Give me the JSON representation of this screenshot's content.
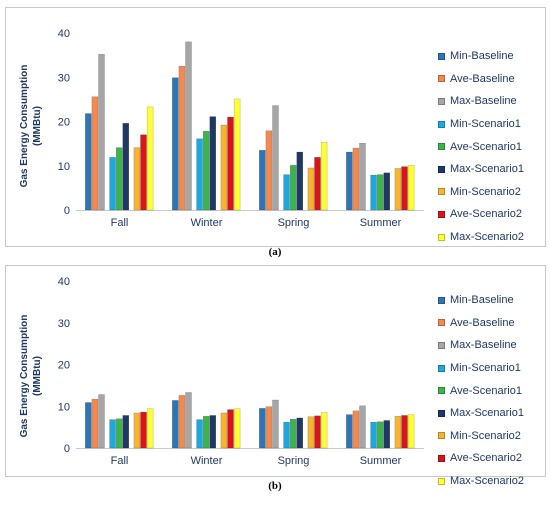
{
  "chart_data": [
    {
      "type": "bar",
      "panel": "a",
      "caption": "(a)",
      "ylabel_lines": [
        "Gas Energy Consumption",
        "(MMBtu)"
      ],
      "ylim": [
        0,
        40
      ],
      "yticks": [
        0,
        10,
        20,
        30,
        40
      ],
      "grid": false,
      "legend_position": "right",
      "categories": [
        "Fall",
        "Winter",
        "Spring",
        "Summer"
      ],
      "series": [
        {
          "name": "Min-Baseline",
          "color": "#2e75b6",
          "values": [
            21.8,
            29.9,
            13.5,
            13.1
          ]
        },
        {
          "name": "Ave-Baseline",
          "color": "#f4894f",
          "values": [
            25.6,
            32.5,
            17.9,
            14.0
          ]
        },
        {
          "name": "Max-Baseline",
          "color": "#a6a6a6",
          "values": [
            35.2,
            38.0,
            23.6,
            15.1
          ]
        },
        {
          "name": "Min-Scenario1",
          "color": "#1fa7e0",
          "values": [
            11.9,
            16.1,
            8.0,
            7.9
          ]
        },
        {
          "name": "Ave-Scenario1",
          "color": "#3cb44b",
          "values": [
            14.1,
            17.8,
            10.1,
            8.0
          ]
        },
        {
          "name": "Max-Scenario1",
          "color": "#1f3864",
          "values": [
            19.6,
            21.1,
            13.1,
            8.4
          ]
        },
        {
          "name": "Min-Scenario2",
          "color": "#f5b52e",
          "values": [
            14.1,
            19.2,
            9.5,
            9.4
          ]
        },
        {
          "name": "Ave-Scenario2",
          "color": "#d9141b",
          "values": [
            17.0,
            21.0,
            11.9,
            9.8
          ]
        },
        {
          "name": "Max-Scenario2",
          "color": "#ffff33",
          "values": [
            23.3,
            25.1,
            15.3,
            10.1
          ]
        }
      ]
    },
    {
      "type": "bar",
      "panel": "b",
      "caption": "(b)",
      "ylabel_lines": [
        "Gas Energy Consumption",
        "(MMBtu)"
      ],
      "ylim": [
        0,
        40
      ],
      "yticks": [
        0,
        10,
        20,
        30,
        40
      ],
      "grid": false,
      "legend_position": "right",
      "categories": [
        "Fall",
        "Winter",
        "Spring",
        "Summer"
      ],
      "series": [
        {
          "name": "Min-Baseline",
          "color": "#2e75b6",
          "values": [
            10.9,
            11.4,
            9.5,
            8.0
          ]
        },
        {
          "name": "Ave-Baseline",
          "color": "#f4894f",
          "values": [
            11.7,
            12.6,
            9.9,
            8.9
          ]
        },
        {
          "name": "Max-Baseline",
          "color": "#a6a6a6",
          "values": [
            12.8,
            13.3,
            11.5,
            10.1
          ]
        },
        {
          "name": "Min-Scenario1",
          "color": "#1fa7e0",
          "values": [
            6.8,
            6.8,
            6.2,
            6.2
          ]
        },
        {
          "name": "Ave-Scenario1",
          "color": "#3cb44b",
          "values": [
            7.0,
            7.6,
            6.9,
            6.3
          ]
        },
        {
          "name": "Max-Scenario1",
          "color": "#1f3864",
          "values": [
            7.8,
            7.8,
            7.2,
            6.6
          ]
        },
        {
          "name": "Min-Scenario2",
          "color": "#f5b52e",
          "values": [
            8.4,
            8.4,
            7.5,
            7.6
          ]
        },
        {
          "name": "Ave-Scenario2",
          "color": "#d9141b",
          "values": [
            8.6,
            9.2,
            7.7,
            7.8
          ]
        },
        {
          "name": "Max-Scenario2",
          "color": "#ffff33",
          "values": [
            9.4,
            9.4,
            8.5,
            8.0
          ]
        }
      ]
    }
  ]
}
